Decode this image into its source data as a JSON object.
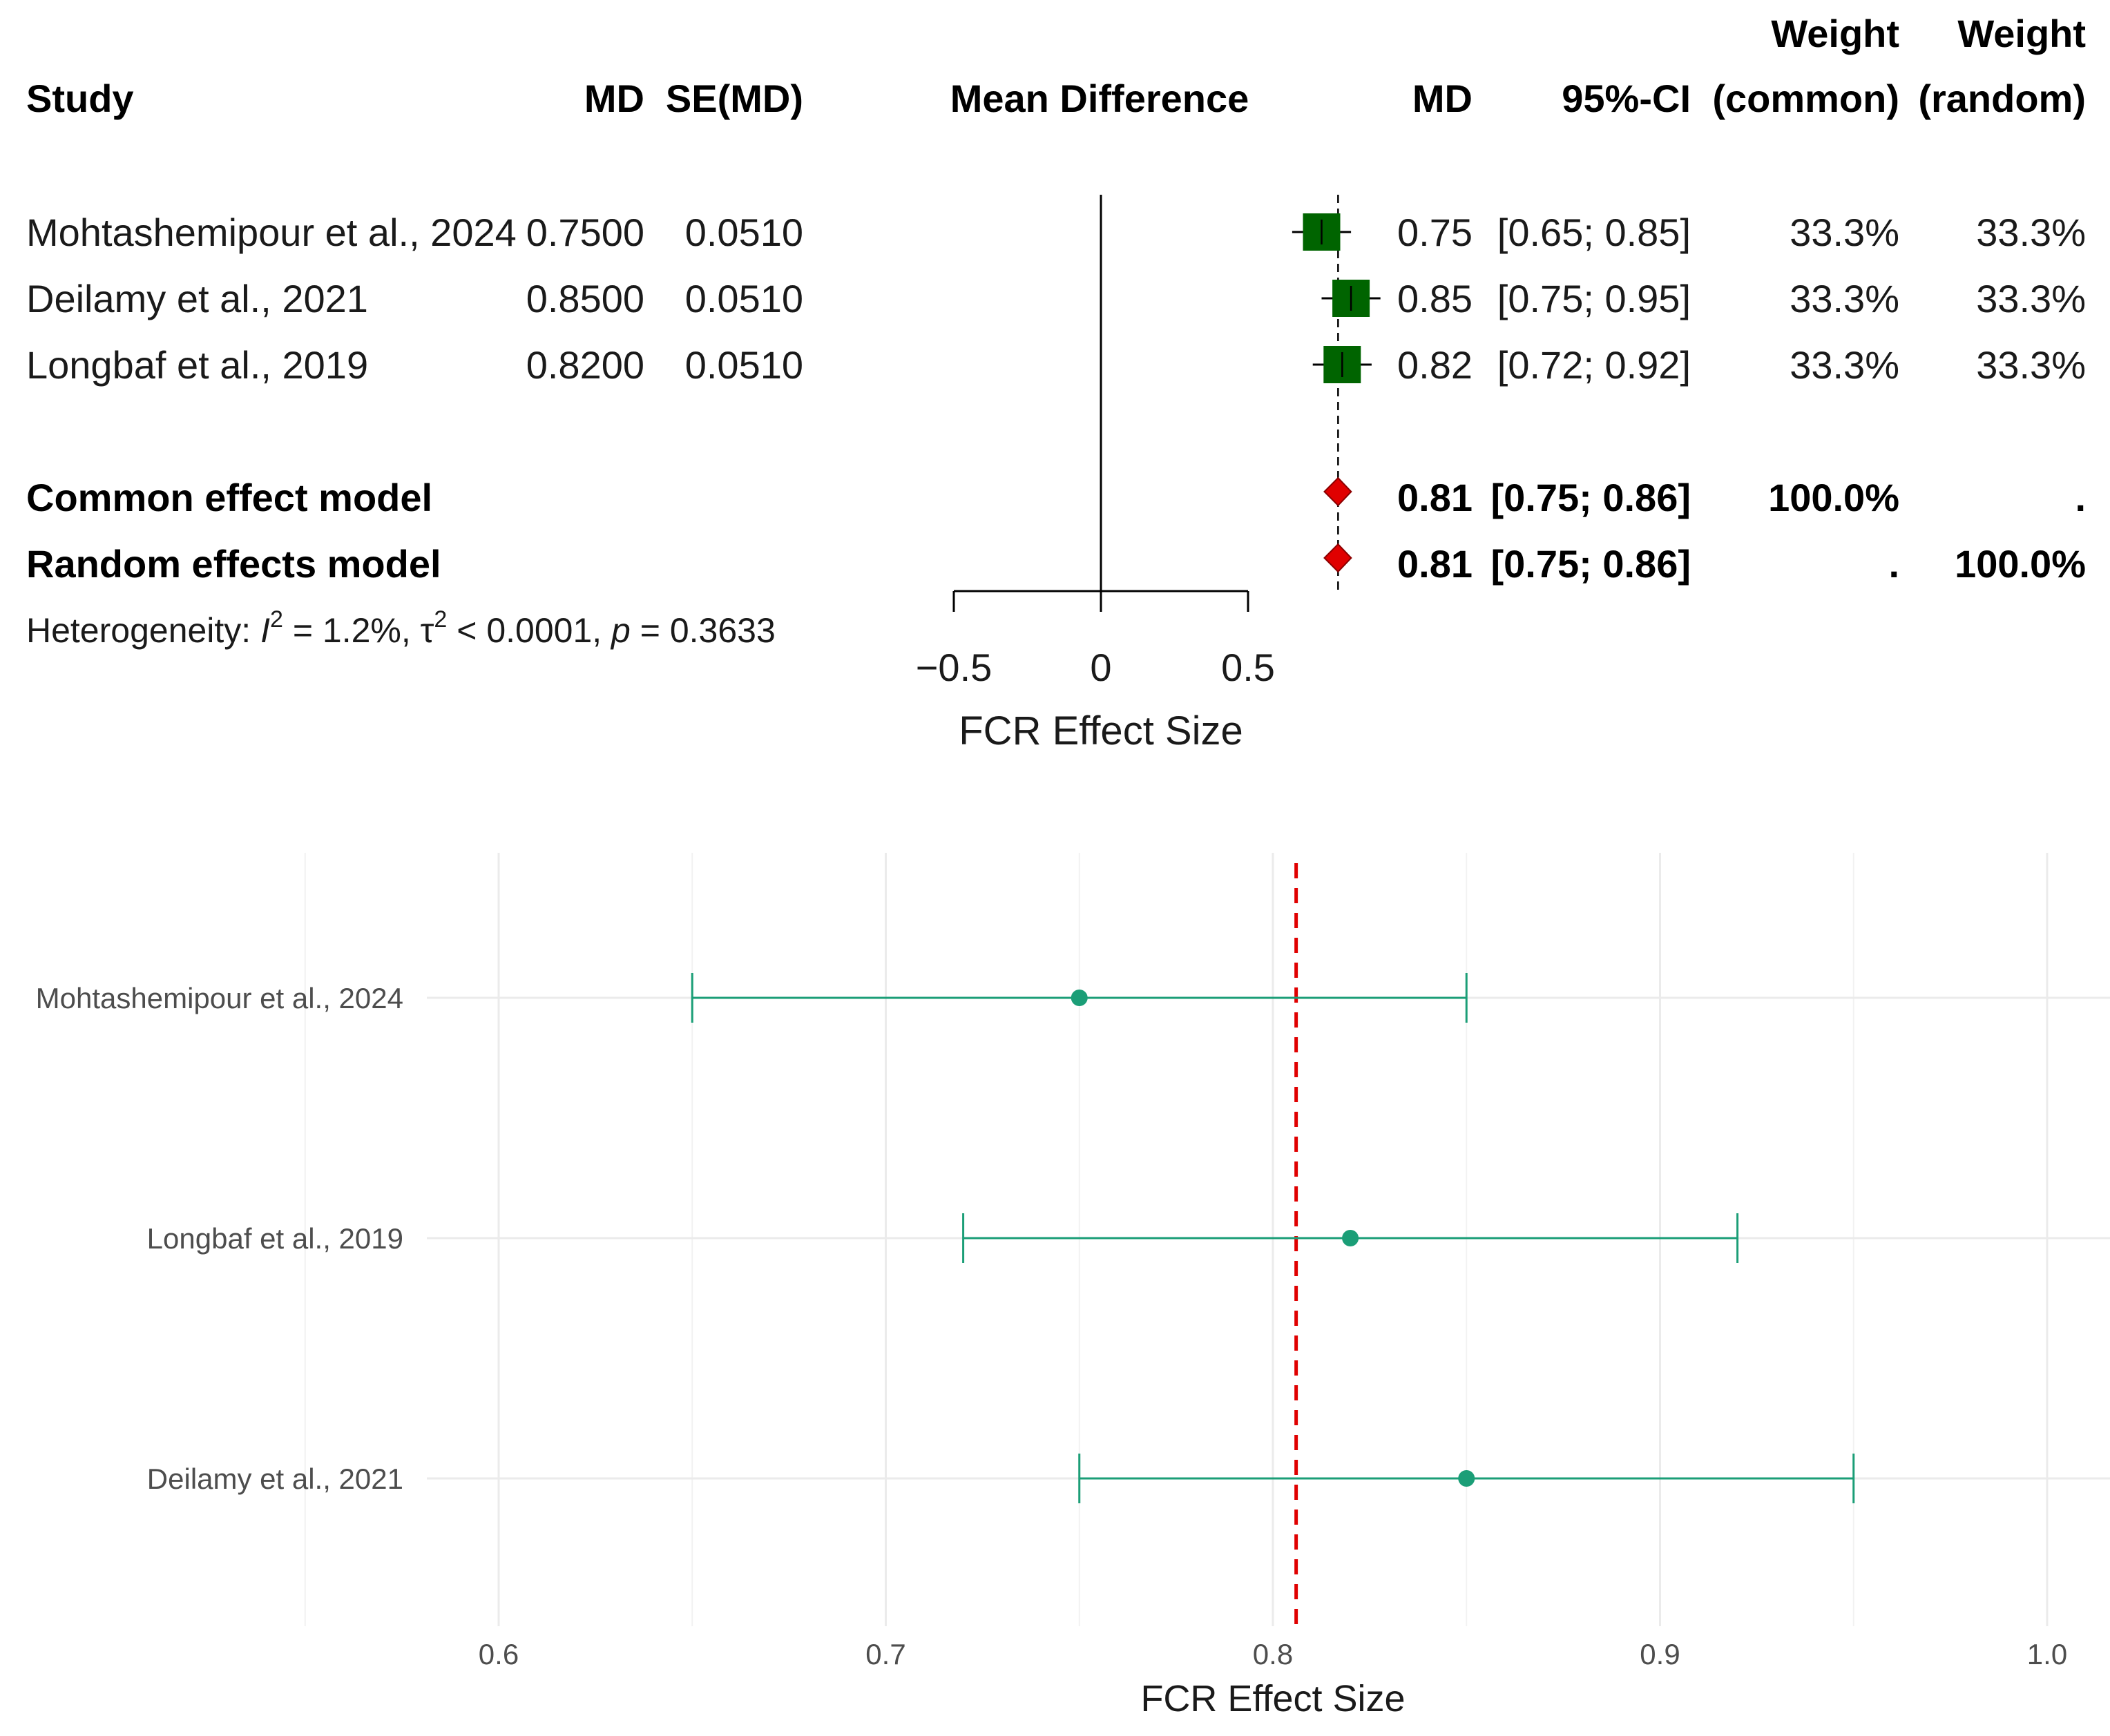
{
  "colors": {
    "box": "#006400",
    "diamond": "#e00000",
    "ci2": "#1b9e77",
    "refline": "#e00000",
    "grid": "#ebebeb"
  },
  "chart_data": [
    {
      "type": "forest",
      "headers": {
        "study": "Study",
        "md": "MD",
        "se": "SE(MD)",
        "plot": "Mean Difference",
        "md2": "MD",
        "ci": "95%-CI",
        "weight_top": "Weight",
        "weight_common": "(common)",
        "weight_random": "(random)"
      },
      "studies": [
        {
          "name": "Mohtashemipour et al., 2024",
          "md_str": "0.7500",
          "se_str": "0.0510",
          "md": 0.75,
          "lower": 0.65,
          "upper": 0.85,
          "md_disp": "0.75",
          "ci_disp": "[0.65; 0.85]",
          "w_common": "33.3%",
          "w_random": "33.3%"
        },
        {
          "name": "Deilamy et al., 2021",
          "md_str": "0.8500",
          "se_str": "0.0510",
          "md": 0.85,
          "lower": 0.75,
          "upper": 0.95,
          "md_disp": "0.85",
          "ci_disp": "[0.75; 0.95]",
          "w_common": "33.3%",
          "w_random": "33.3%"
        },
        {
          "name": "Longbaf et al., 2019",
          "md_str": "0.8200",
          "se_str": "0.0510",
          "md": 0.82,
          "lower": 0.72,
          "upper": 0.92,
          "md_disp": "0.82",
          "ci_disp": "[0.72; 0.92]",
          "w_common": "33.3%",
          "w_random": "33.3%"
        }
      ],
      "models": [
        {
          "name": "Common effect model",
          "md": 0.806,
          "lower": 0.75,
          "upper": 0.86,
          "md_disp": "0.81",
          "ci_disp": "[0.75; 0.86]",
          "w_common": "100.0%",
          "w_random": "."
        },
        {
          "name": "Random effects model",
          "md": 0.806,
          "lower": 0.75,
          "upper": 0.86,
          "md_disp": "0.81",
          "ci_disp": "[0.75; 0.86]",
          "w_common": ".",
          "w_random": "100.0%"
        }
      ],
      "heterogeneity": {
        "prefix": "Heterogeneity: ",
        "i2_sym": "I",
        "i2_sup": "2",
        "i2_val": " = 1.2%, ",
        "tau_sym": "τ",
        "tau_sup": "2",
        "tau_val": " < 0.0001, ",
        "p_sym": "p",
        "p_val": " = 0.3633"
      },
      "xaxis": {
        "ticks": [
          -0.5,
          0,
          0.5
        ],
        "tick_labels": [
          "−0.5",
          "0",
          "0.5"
        ],
        "xlim": [
          -0.5,
          0.5
        ],
        "label": "FCR Effect Size"
      }
    },
    {
      "type": "errorbar",
      "studies": [
        {
          "name": "Mohtashemipour et al., 2024",
          "md": 0.75,
          "lower": 0.65,
          "upper": 0.85
        },
        {
          "name": "Longbaf et al., 2019",
          "md": 0.82,
          "lower": 0.72,
          "upper": 0.92
        },
        {
          "name": "Deilamy et al., 2021",
          "md": 0.85,
          "lower": 0.75,
          "upper": 0.95
        }
      ],
      "reference_line": 0.806,
      "xaxis": {
        "ticks": [
          0.6,
          0.7,
          0.8,
          0.9,
          1.0
        ],
        "tick_labels": [
          "0.6",
          "0.7",
          "0.8",
          "0.9",
          "1.0"
        ],
        "xlim": [
          0.54,
          1.02
        ],
        "label": "FCR Effect Size"
      },
      "grid": true
    }
  ]
}
